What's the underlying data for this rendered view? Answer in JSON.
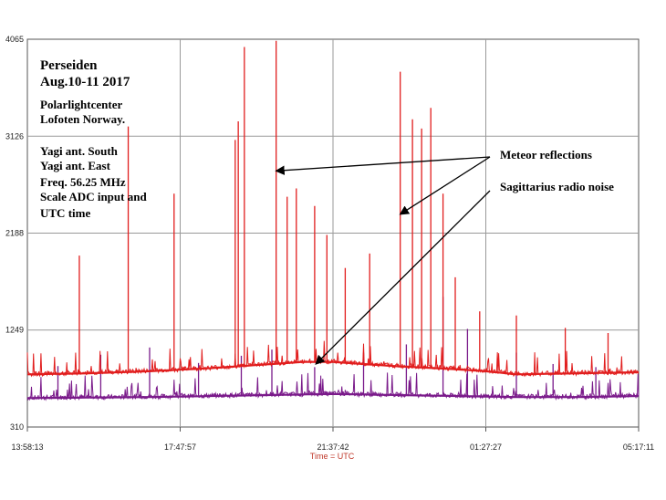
{
  "chart_data": {
    "type": "line",
    "title": "Perseiden",
    "subtitle": "Aug.10-11 2017",
    "xlabel": "Time = UTC",
    "ylabel": "",
    "x_ticks": [
      "13:58:13",
      "17:47:57",
      "21:37:42",
      "01:27:27",
      "05:17:11"
    ],
    "y_ticks": [
      4065,
      3126,
      2188,
      1249,
      310
    ],
    "ylim": [
      310,
      4065
    ],
    "grid": true,
    "legend_position": "top-left",
    "info_lines": [
      {
        "text": "Polarlightcenter",
        "color": "#000000"
      },
      {
        "text": "Lofoten Norway.",
        "color": "#000000"
      },
      {
        "text": "Yagi ant. South",
        "color": "#e11d1d"
      },
      {
        "text": "Yagi ant. East",
        "color": "#c040c0"
      },
      {
        "text": "Freq. 56.25 MHz",
        "color": "#000000"
      },
      {
        "text": "Scale  ADC input and",
        "color": "#000000"
      },
      {
        "text": "UTC time",
        "color": "#000000"
      }
    ],
    "annotations": [
      {
        "text": "Meteor reflections",
        "targets": [
          [
            0.407,
            2790
          ],
          [
            0.61,
            2370
          ]
        ]
      },
      {
        "text": "Sagittarius radio noise",
        "targets": [
          [
            0.472,
            920
          ]
        ]
      }
    ],
    "series": [
      {
        "name": "Yagi ant. South",
        "color": "#e11d1d",
        "baseline": [
          [
            0,
            820
          ],
          [
            0.1,
            830
          ],
          [
            0.2,
            850
          ],
          [
            0.3,
            880
          ],
          [
            0.35,
            900
          ],
          [
            0.4,
            920
          ],
          [
            0.45,
            940
          ],
          [
            0.5,
            940
          ],
          [
            0.55,
            920
          ],
          [
            0.6,
            900
          ],
          [
            0.7,
            870
          ],
          [
            0.75,
            850
          ],
          [
            0.8,
            820
          ],
          [
            0.9,
            830
          ],
          [
            1.0,
            840
          ]
        ],
        "spikes": [
          [
            0.085,
            1970
          ],
          [
            0.165,
            3220
          ],
          [
            0.24,
            2570
          ],
          [
            0.34,
            3090
          ],
          [
            0.345,
            3270
          ],
          [
            0.355,
            3990
          ],
          [
            0.407,
            4050
          ],
          [
            0.425,
            2540
          ],
          [
            0.44,
            2620
          ],
          [
            0.47,
            2450
          ],
          [
            0.49,
            2170
          ],
          [
            0.52,
            1850
          ],
          [
            0.56,
            1990
          ],
          [
            0.61,
            3750
          ],
          [
            0.63,
            3290
          ],
          [
            0.645,
            3200
          ],
          [
            0.66,
            3400
          ],
          [
            0.68,
            2570
          ],
          [
            0.7,
            1760
          ],
          [
            0.74,
            1430
          ],
          [
            0.8,
            1390
          ],
          [
            0.88,
            1270
          ],
          [
            0.95,
            1220
          ]
        ]
      },
      {
        "name": "Yagi ant. East",
        "color": "#7a1a8a",
        "baseline": [
          [
            0,
            590
          ],
          [
            0.2,
            600
          ],
          [
            0.4,
            620
          ],
          [
            0.5,
            630
          ],
          [
            0.6,
            620
          ],
          [
            0.7,
            610
          ],
          [
            0.8,
            600
          ],
          [
            0.9,
            600
          ],
          [
            1.0,
            610
          ]
        ],
        "spikes": [
          [
            0.05,
            900
          ],
          [
            0.12,
            1010
          ],
          [
            0.2,
            1080
          ],
          [
            0.28,
            930
          ],
          [
            0.35,
            1000
          ],
          [
            0.4,
            1060
          ],
          [
            0.47,
            890
          ],
          [
            0.55,
            1030
          ],
          [
            0.62,
            1110
          ],
          [
            0.68,
            1570
          ],
          [
            0.72,
            1260
          ],
          [
            0.8,
            1030
          ],
          [
            0.86,
            920
          ],
          [
            0.93,
            890
          ]
        ]
      }
    ]
  }
}
